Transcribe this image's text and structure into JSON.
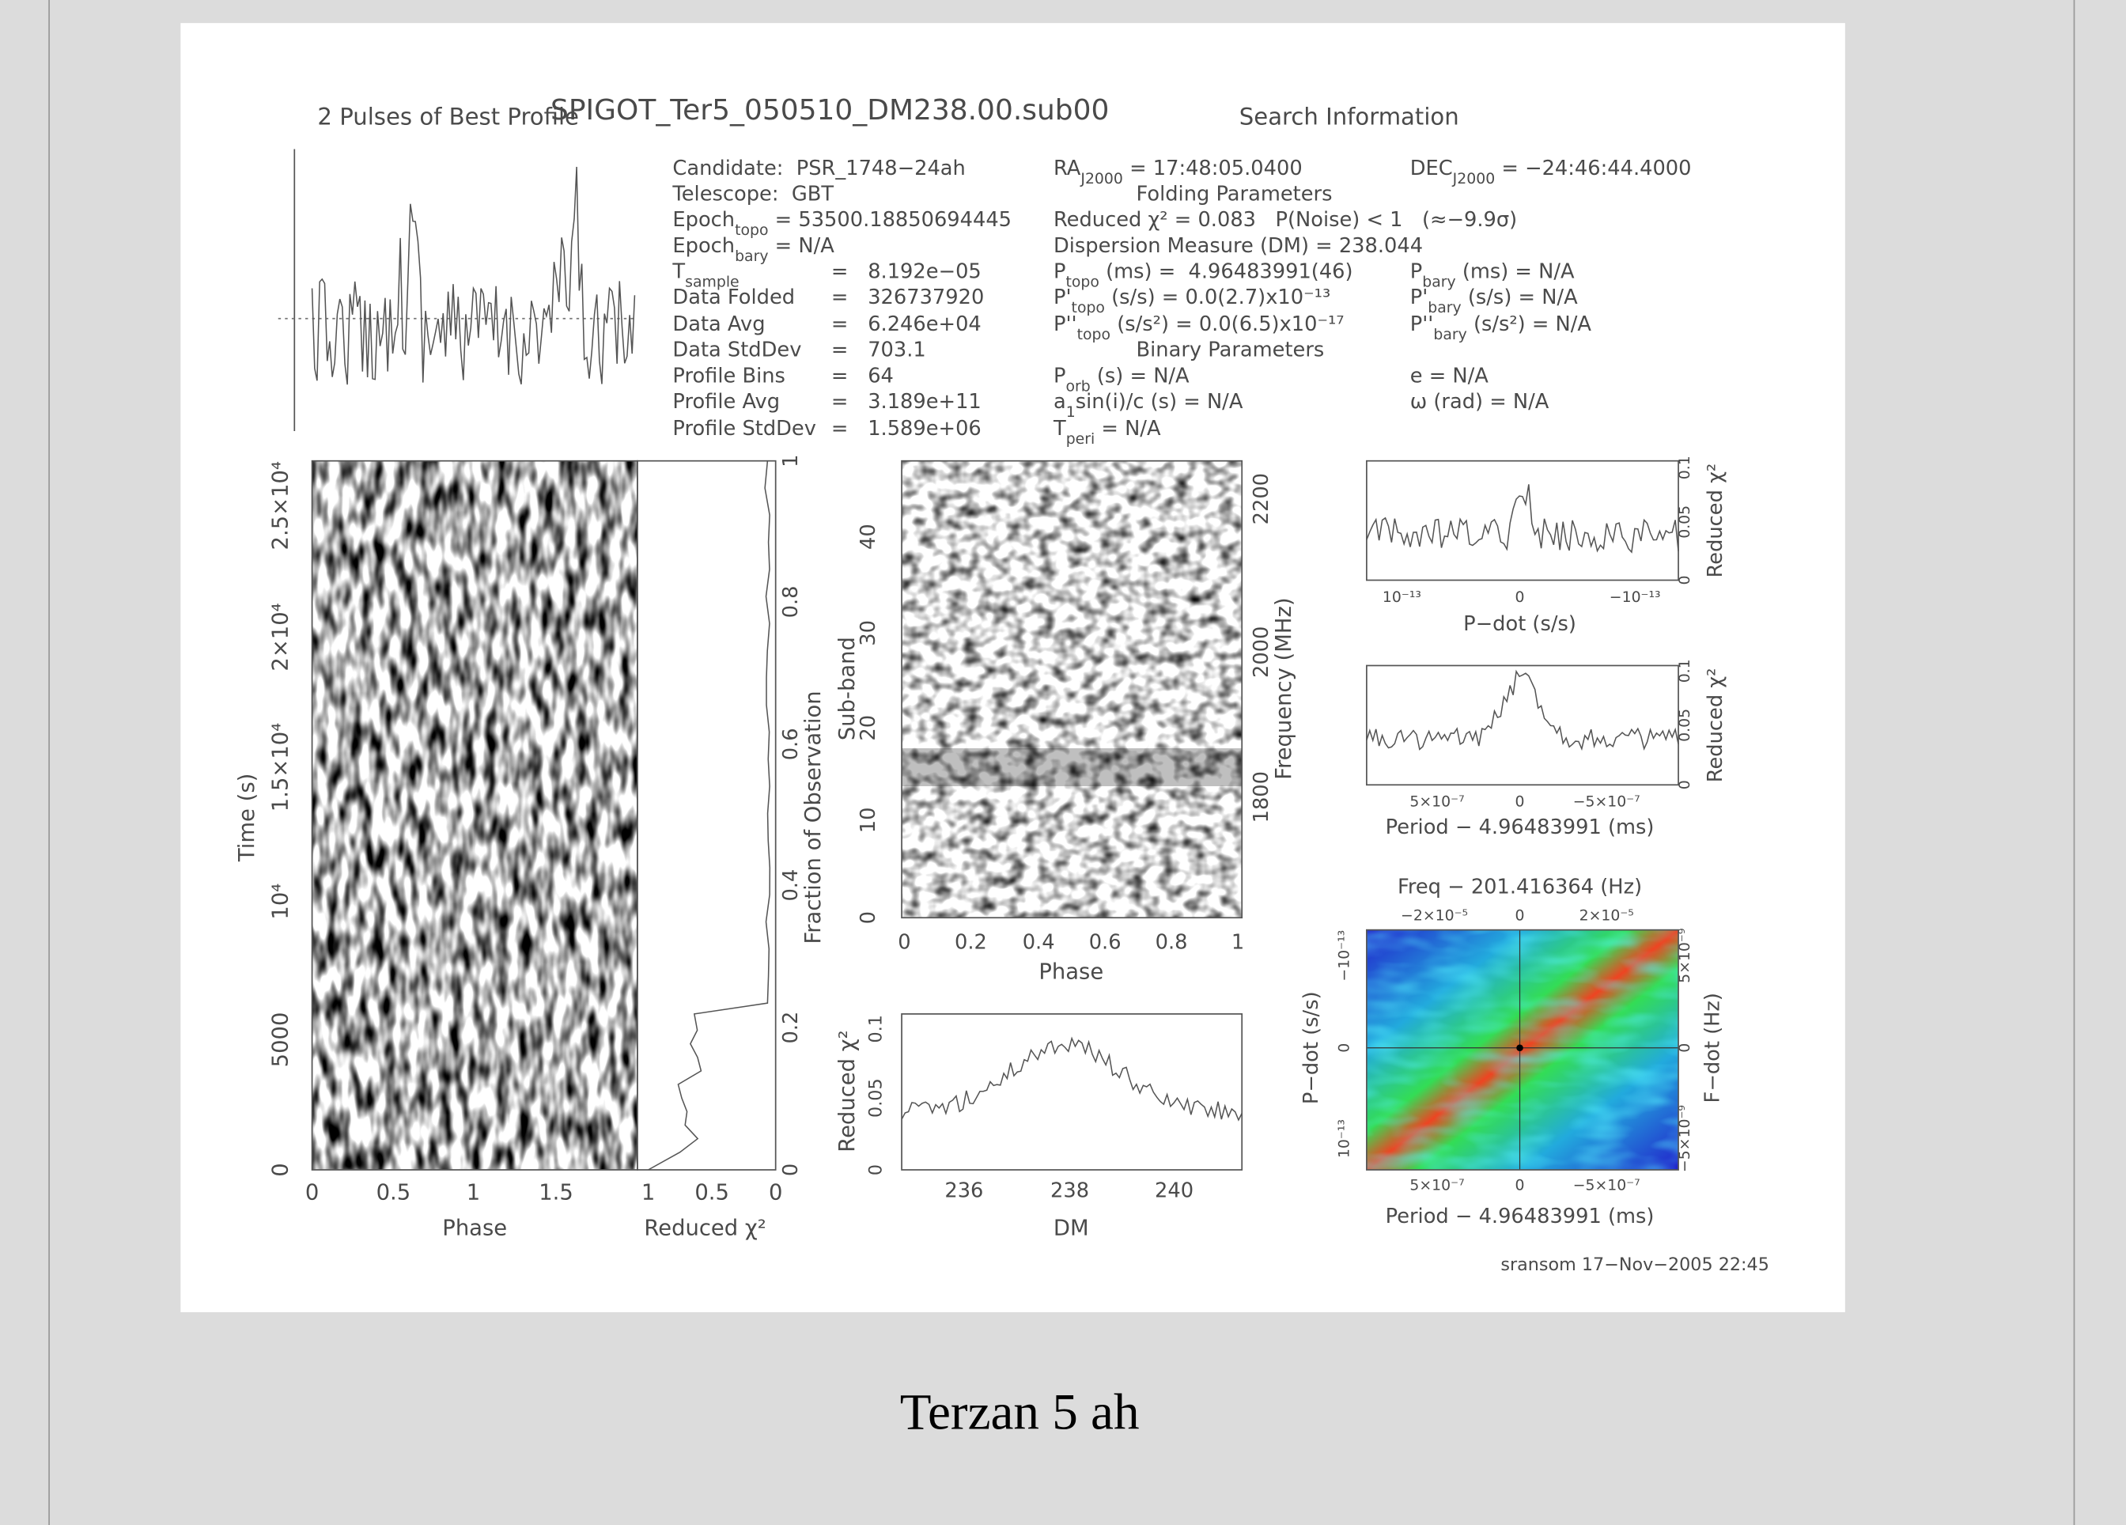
{
  "plot": {
    "title": "SPIGOT_Ter5_050510_DM238.00.sub00",
    "left_heading": "2 Pulses of Best Profile",
    "right_heading": "Search Information",
    "info": {
      "col1": [
        [
          {
            "text": "Candidate:  PSR_1748−24ah"
          }
        ],
        [
          {
            "text": "Telescope:  GBT"
          }
        ],
        [
          {
            "text": "Epoch"
          },
          {
            "sub": "topo"
          },
          {
            "text": " = 53500.18850694445"
          }
        ],
        [
          {
            "text": "Epoch"
          },
          {
            "sub": "bary"
          },
          {
            "text": " = N/A"
          }
        ],
        [
          {
            "text": "T"
          },
          {
            "sub": "sample"
          },
          {
            "text": "="
          },
          {
            "text": "8.192e−05"
          }
        ],
        [
          {
            "text": "Data Folded"
          },
          {
            "text": "="
          },
          {
            "text": "326737920"
          }
        ],
        [
          {
            "text": "Data Avg"
          },
          {
            "text": "="
          },
          {
            "text": "6.246e+04"
          }
        ],
        [
          {
            "text": "Data StdDev"
          },
          {
            "text": "="
          },
          {
            "text": "703.1"
          }
        ],
        [
          {
            "text": "Profile Bins"
          },
          {
            "text": "="
          },
          {
            "text": "64"
          }
        ],
        [
          {
            "text": "Profile Avg"
          },
          {
            "text": "="
          },
          {
            "text": "3.189e+11"
          }
        ],
        [
          {
            "text": "Profile StdDev"
          },
          {
            "text": "="
          },
          {
            "text": "1.589e+06"
          }
        ]
      ],
      "col2": [
        [
          {
            "text": "RA"
          },
          {
            "sub": "J2000"
          },
          {
            "text": " = 17:48:05.0400"
          }
        ],
        [
          {
            "text": "Folding Parameters"
          }
        ],
        [
          {
            "text": "Reduced χ² = 0.083   P(Noise) < 1   (≈−9.9σ)"
          }
        ],
        [
          {
            "text": "Dispersion Measure (DM) = 238.044"
          }
        ],
        [
          {
            "text": "P"
          },
          {
            "sub": "topo"
          },
          {
            "text": " (ms) =  4.96483991(46)"
          }
        ],
        [
          {
            "text": "P'"
          },
          {
            "sub": "topo"
          },
          {
            "text": " (s/s) = 0.0(2.7)x10⁻¹³"
          }
        ],
        [
          {
            "text": "P''"
          },
          {
            "sub": "topo"
          },
          {
            "text": " (s/s²) = 0.0(6.5)x10⁻¹⁷"
          }
        ],
        [
          {
            "text": "Binary Parameters"
          }
        ],
        [
          {
            "text": "P"
          },
          {
            "sub": "orb"
          },
          {
            "text": " (s) = N/A"
          }
        ],
        [
          {
            "text": "a"
          },
          {
            "sub": "1"
          },
          {
            "text": "sin(i)/c (s) = N/A"
          }
        ],
        [
          {
            "text": "T"
          },
          {
            "sub": "peri"
          },
          {
            "text": " = N/A"
          }
        ]
      ],
      "col3": [
        [
          {
            "text": "DEC"
          },
          {
            "sub": "J2000"
          },
          {
            "text": " = −24:46:44.4000"
          }
        ],
        [
          {
            "text": "P"
          },
          {
            "sub": "bary"
          },
          {
            "text": " (ms) = N/A"
          }
        ],
        [
          {
            "text": "P'"
          },
          {
            "sub": "bary"
          },
          {
            "text": " (s/s) = N/A"
          }
        ],
        [
          {
            "text": "P''"
          },
          {
            "sub": "bary"
          },
          {
            "text": " (s/s²) = N/A"
          }
        ],
        [
          {
            "text": "e = N/A"
          }
        ],
        [
          {
            "text": "ω (rad) = N/A"
          }
        ]
      ]
    },
    "axes": [
      {
        "label": "Phase",
        "ticks": [
          "0",
          "0.5",
          "1",
          "1.5"
        ]
      },
      {
        "label": "Time (s)",
        "ticks": [
          "0",
          "5000",
          "10⁴",
          "1.5×10⁴",
          "2×10⁴",
          "2.5×10⁴"
        ]
      },
      {
        "label": "Reduced χ²",
        "ticks": [
          "1",
          "0.5",
          "0"
        ]
      },
      {
        "label": "Fraction of Observation",
        "ticks": [
          "0",
          "0.2",
          "0.4",
          "0.6",
          "0.8",
          "1"
        ]
      },
      {
        "label": "Phase",
        "ticks": [
          "0",
          "0.2",
          "0.4",
          "0.6",
          "0.8",
          "1"
        ]
      },
      {
        "label": "Sub-band",
        "ticks": [
          "0",
          "10",
          "20",
          "30",
          "40"
        ]
      },
      {
        "label": "Frequency (MHz)",
        "ticks": [
          "1800",
          "2000",
          "2200"
        ]
      },
      {
        "label": "DM",
        "ticks": [
          "236",
          "238",
          "240"
        ]
      },
      {
        "label": "Reduced χ²",
        "ticks": [
          "0",
          "0.05",
          "0.1"
        ]
      },
      {
        "label": "P−dot (s/s)",
        "ticks": [
          "10⁻¹³",
          "0",
          "−10⁻¹³"
        ]
      },
      {
        "label": "Reduced χ²",
        "ticks": [
          "0",
          "0.05",
          "0.1"
        ]
      },
      {
        "label": "Period − 4.96483991 (ms)",
        "ticks": [
          "5×10⁻⁷",
          "0",
          "−5×10⁻⁷"
        ]
      },
      {
        "label": "Reduced χ²",
        "ticks": [
          "0",
          "0.05",
          "0.1"
        ]
      },
      {
        "label": "Freq − 201.416364 (Hz)",
        "ticks": [
          "−2×10⁻⁵",
          "0",
          "2×10⁻⁵"
        ]
      },
      {
        "label": "Period − 4.96483991 (ms)",
        "ticks": [
          "5×10⁻⁷",
          "0",
          "−5×10⁻⁷"
        ]
      },
      {
        "label": "P−dot (s/s)",
        "ticks": [
          "10⁻¹³",
          "0",
          "−10⁻¹³"
        ]
      },
      {
        "label": "F−dot (Hz)",
        "ticks": [
          "5×10⁻⁹",
          "0",
          "−5×10⁻⁹"
        ]
      }
    ],
    "footer": "sransom 17−Nov−2005 22:45"
  },
  "caption": "Terzan 5 ah"
}
